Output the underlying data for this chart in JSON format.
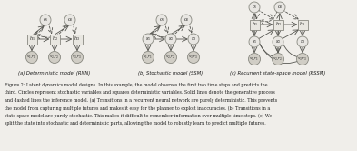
{
  "subtitles": [
    "(a) Deterministic model (RNN)",
    "(b) Stochastic model (SSM)",
    "(c) Recurrent state-space model (RSSM)"
  ],
  "caption_lines": [
    "Figure 2: Latent dynamics model designs. In this example, the model observes the first two time steps and predicts the",
    "third. Circles represent stochastic variables and squares deterministic variables. Solid lines denote the generative process",
    "and dashed lines the inference model. (a) Transitions in a recurrent neural network are purely deterministic. This prevents",
    "the model from capturing multiple futures and makes it easy for the planner to exploit inaccuracies. (b) Transitions in a",
    "state-space model are purely stochastic. This makes it difficult to remember information over multiple time steps. (c) We",
    "split the state into stochastic and deterministic parts, allowing the model to robustly learn to predict multiple futures."
  ],
  "bg_color": "#f0eeea",
  "node_fill": "#d0cdc5",
  "node_edge": "#888880",
  "sq_fill": "#e8e6e0",
  "sq_edge": "#888880",
  "arrow_color": "#555550",
  "text_color": "#1a1a1a",
  "caption_color": "#222222"
}
